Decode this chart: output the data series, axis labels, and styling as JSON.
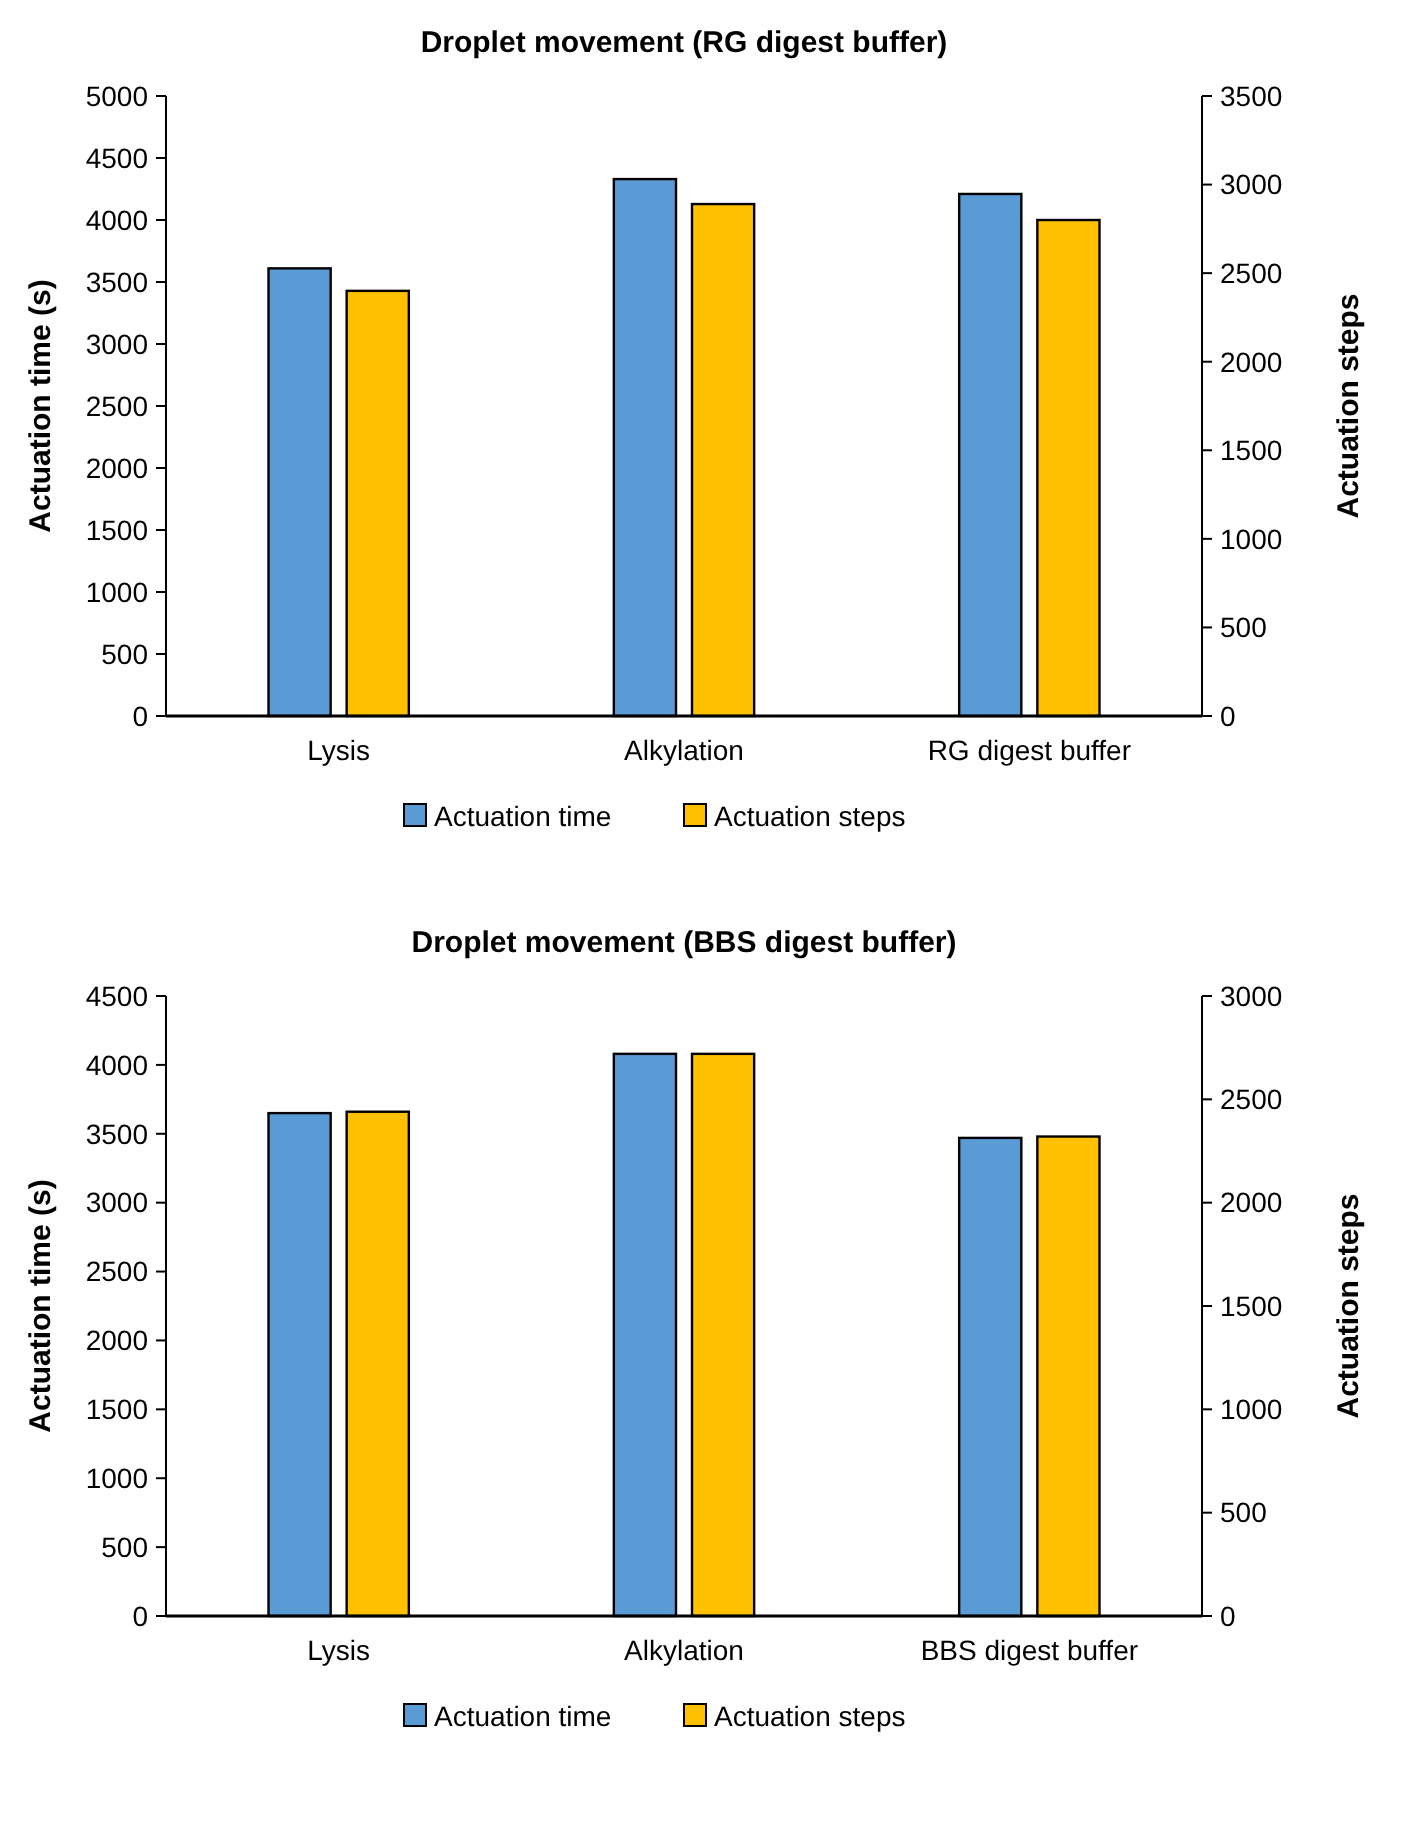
{
  "chart_data": [
    {
      "type": "bar",
      "title": "Droplet movement (RG digest buffer)",
      "ylabel": "Actuation time (s)",
      "y2label": "Actuation steps",
      "categories": [
        "Lysis",
        "Alkylation",
        "RG digest buffer"
      ],
      "series": [
        {
          "name": "Actuation time",
          "color": "#5b9bd5",
          "values": [
            3610,
            4330,
            4210
          ]
        },
        {
          "name": "Actuation steps",
          "color": "#ffc000",
          "values": [
            2400,
            2890,
            2800
          ],
          "axis": "y2"
        }
      ],
      "ylim": [
        0,
        5000
      ],
      "yticks": [
        0,
        500,
        1000,
        1500,
        2000,
        2500,
        3000,
        3500,
        4000,
        4500,
        5000
      ],
      "y2lim": [
        0,
        3500
      ],
      "y2ticks": [
        0,
        500,
        1000,
        1500,
        2000,
        2500,
        3000,
        3500
      ],
      "grid": false,
      "legend": "bottom"
    },
    {
      "type": "bar",
      "title": "Droplet movement (BBS digest buffer)",
      "ylabel": "Actuation time (s)",
      "y2label": "Actuation steps",
      "categories": [
        "Lysis",
        "Alkylation",
        "BBS digest buffer"
      ],
      "series": [
        {
          "name": "Actuation time",
          "color": "#5b9bd5",
          "values": [
            3650,
            4080,
            3470
          ]
        },
        {
          "name": "Actuation steps",
          "color": "#ffc000",
          "values": [
            2440,
            2720,
            2320
          ],
          "axis": "y2"
        }
      ],
      "ylim": [
        0,
        4500
      ],
      "yticks": [
        0,
        500,
        1000,
        1500,
        2000,
        2500,
        3000,
        3500,
        4000,
        4500
      ],
      "y2lim": [
        0,
        3000
      ],
      "y2ticks": [
        0,
        500,
        1000,
        1500,
        2000,
        2500,
        3000
      ],
      "grid": false,
      "legend": "bottom"
    }
  ]
}
